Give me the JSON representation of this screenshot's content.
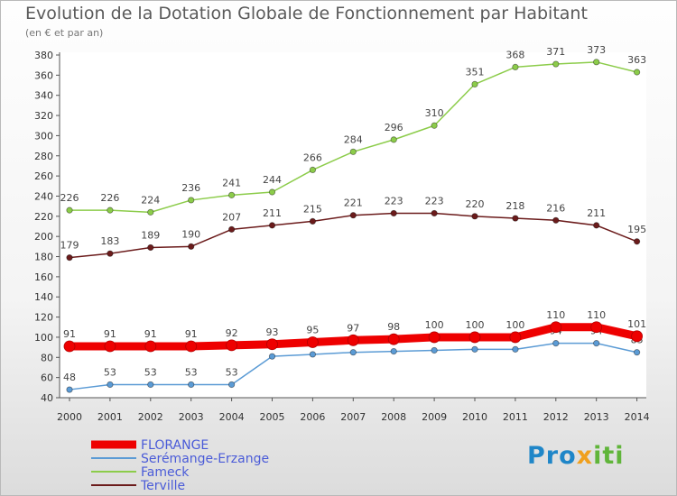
{
  "title": "Evolution de la Dotation Globale de Fonctionnement par Habitant",
  "subtitle": "(en € et par an)",
  "logo": {
    "p1": "Pro",
    "p2": "x",
    "p3": "iti"
  },
  "colors": {
    "FLORANGE": "#ee0000",
    "Serémange-Erzange": "#5b9bd5",
    "Fameck": "#8ccc4a",
    "Terville": "#6b1b1b"
  },
  "chart_data": {
    "type": "line",
    "title": "Evolution de la Dotation Globale de Fonctionnement par Habitant",
    "subtitle": "(en € et par an)",
    "x": [
      2000,
      2001,
      2002,
      2003,
      2004,
      2005,
      2006,
      2007,
      2008,
      2009,
      2010,
      2011,
      2012,
      2013,
      2014
    ],
    "ylim": [
      40,
      380
    ],
    "yticks": [
      40,
      60,
      80,
      100,
      120,
      140,
      160,
      180,
      200,
      220,
      240,
      260,
      280,
      300,
      320,
      340,
      360,
      380
    ],
    "grid": false,
    "legend_position": "bottom-left",
    "series": [
      {
        "name": "FLORANGE",
        "values": [
          91,
          91,
          91,
          91,
          92,
          93,
          95,
          97,
          98,
          100,
          100,
          100,
          110,
          110,
          101
        ]
      },
      {
        "name": "Serémange-Erzange",
        "values": [
          48,
          53,
          53,
          53,
          53,
          81,
          83,
          85,
          86,
          87,
          88,
          88,
          94,
          94,
          85
        ]
      },
      {
        "name": "Fameck",
        "values": [
          226,
          226,
          224,
          236,
          241,
          244,
          266,
          284,
          296,
          310,
          351,
          368,
          371,
          373,
          363
        ]
      },
      {
        "name": "Terville",
        "values": [
          179,
          183,
          189,
          190,
          207,
          211,
          215,
          221,
          223,
          223,
          220,
          218,
          216,
          211,
          195
        ]
      }
    ]
  }
}
